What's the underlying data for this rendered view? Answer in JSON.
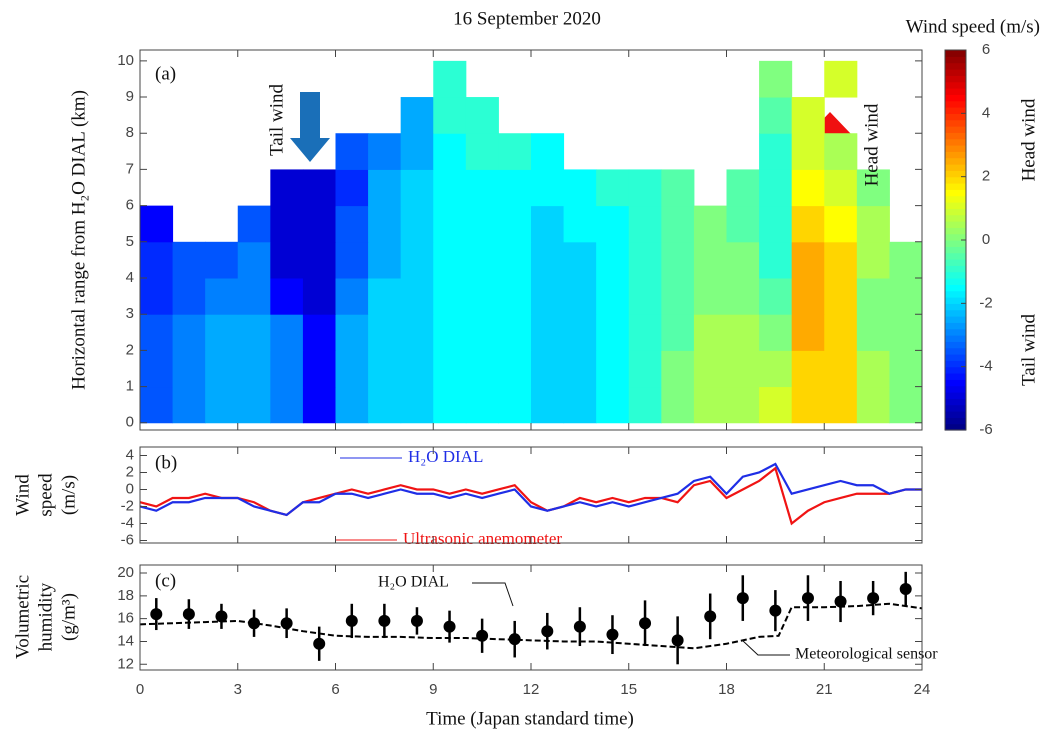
{
  "chart_data": [
    {
      "type": "heatmap",
      "title": "16 September 2020",
      "panel_label": "(a)",
      "ylabel": "Horizontal range from H₂O DIAL (km)",
      "xlim": [
        0,
        24
      ],
      "xticks": [
        0,
        3,
        6,
        9,
        12,
        15,
        18,
        21,
        24
      ],
      "ylim": [
        -0.2,
        10.3
      ],
      "yticks": [
        0,
        1,
        2,
        3,
        4,
        5,
        6,
        7,
        8,
        9,
        10
      ],
      "x_edges": [
        0,
        1,
        2,
        3,
        4,
        5,
        6,
        7,
        8,
        9,
        10,
        11,
        12,
        13,
        14,
        15,
        16,
        17,
        18,
        19,
        20,
        21,
        22,
        23,
        24
      ],
      "y_edges": [
        0,
        1,
        2,
        3,
        4,
        5,
        6,
        7,
        8,
        9,
        10
      ],
      "colormap": "jet",
      "z": [
        [
          -3.5,
          -3,
          -2.5,
          -2.5,
          -3,
          -4.5,
          -2.5,
          -2,
          -2,
          -1.5,
          -1.5,
          -1.5,
          -2,
          -2,
          -1.5,
          -1,
          0,
          0.5,
          0.5,
          1,
          2,
          2,
          0.5,
          0
        ],
        [
          -3.5,
          -3,
          -2.5,
          -2.5,
          -3,
          -4.5,
          -2.5,
          -2,
          -2,
          -1.5,
          -1.5,
          -1.5,
          -2,
          -2,
          -1.5,
          -1,
          0,
          0.5,
          0.5,
          0.5,
          2,
          2,
          0.5,
          0
        ],
        [
          -3.5,
          -3,
          -2.5,
          -2.5,
          -3,
          -4.5,
          -2.5,
          -2,
          -2,
          -1.5,
          -1.5,
          -1.5,
          -2,
          -2,
          -1.5,
          -1,
          -0.5,
          0.5,
          0.5,
          0,
          2.5,
          2,
          0,
          0
        ],
        [
          -4,
          -3.5,
          -3,
          -3,
          -4.5,
          -5,
          -3,
          -2,
          -2,
          -1.5,
          -1.5,
          -1.5,
          -2,
          -2,
          -1.5,
          -1,
          -0.5,
          0,
          0,
          -0.5,
          2.5,
          2,
          0,
          0
        ],
        [
          -4,
          -3.5,
          -3.5,
          -3,
          -5,
          -5,
          -3.5,
          -2.5,
          -2,
          -1.5,
          -1.5,
          -1.5,
          -2,
          -2,
          -1.5,
          -1,
          -0.5,
          0,
          0,
          -1,
          2.5,
          2,
          0.5,
          0
        ],
        [
          -4.5,
          null,
          null,
          -3.5,
          -5,
          -5,
          -3.5,
          -2.5,
          -2,
          -1.5,
          -1.5,
          -1.5,
          -2,
          -1.5,
          -1.5,
          -1,
          -0.5,
          0,
          -0.5,
          -1,
          2,
          1.5,
          0.5,
          null
        ],
        [
          null,
          null,
          null,
          null,
          -5,
          -5,
          -4,
          -2.5,
          -2,
          -1.5,
          -1.5,
          -1.5,
          -1.5,
          -1.5,
          -1,
          -1,
          -0.5,
          null,
          -0.5,
          -1,
          1.5,
          1,
          0,
          null
        ],
        [
          null,
          null,
          null,
          null,
          null,
          null,
          -3.5,
          -3,
          -2.5,
          -1.5,
          -1,
          -1,
          -1.5,
          null,
          null,
          null,
          null,
          null,
          null,
          -1,
          1,
          0.5,
          null,
          null
        ],
        [
          null,
          null,
          null,
          null,
          null,
          null,
          null,
          null,
          -2.5,
          -1,
          -1,
          null,
          null,
          null,
          null,
          null,
          null,
          null,
          null,
          -0.5,
          1,
          null,
          null,
          null
        ],
        [
          null,
          null,
          null,
          null,
          null,
          null,
          null,
          null,
          null,
          -1,
          null,
          null,
          null,
          null,
          null,
          null,
          null,
          null,
          null,
          0,
          null,
          1,
          null,
          null
        ]
      ],
      "colorbar": {
        "label": "Wind speed (m/s)",
        "lim": [
          -6,
          6
        ],
        "ticks": [
          -6,
          -4,
          -2,
          0,
          2,
          4,
          6
        ]
      },
      "annotations": [
        "Tail wind",
        "Head wind",
        "Head wind",
        "Tail wind"
      ]
    },
    {
      "type": "line",
      "panel_label": "(b)",
      "ylabel": [
        "Wind",
        "speed",
        "(m/s)"
      ],
      "xlim": [
        0,
        24
      ],
      "xticks": [
        0,
        3,
        6,
        9,
        12,
        15,
        18,
        21,
        24
      ],
      "ylim": [
        -6.3,
        5
      ],
      "yticks": [
        -6,
        -4,
        -2,
        0,
        2,
        4
      ],
      "x": [
        0,
        0.5,
        1,
        1.5,
        2,
        2.5,
        3,
        3.5,
        4,
        4.5,
        5,
        5.5,
        6,
        6.5,
        7,
        7.5,
        8,
        8.5,
        9,
        9.5,
        10,
        10.5,
        11,
        11.5,
        12,
        12.5,
        13,
        13.5,
        14,
        14.5,
        15,
        15.5,
        16,
        16.5,
        17,
        17.5,
        18,
        18.5,
        19,
        19.5,
        20,
        20.5,
        21,
        21.5,
        22,
        22.5,
        23,
        23.5,
        24
      ],
      "series": [
        {
          "name": "H₂O DIAL",
          "color": "#1f2ee6",
          "values": [
            -2,
            -2.5,
            -1.5,
            -1.5,
            -1,
            -1,
            -1,
            -2,
            -2.5,
            -3,
            -1.5,
            -1.5,
            -0.5,
            -0.5,
            -1,
            -0.5,
            0,
            -0.5,
            -0.5,
            -1,
            -0.5,
            -1,
            -0.5,
            0,
            -2,
            -2.5,
            -2,
            -1.5,
            -2,
            -1.5,
            -2,
            -1.5,
            -1,
            -0.5,
            1,
            1.5,
            -0.5,
            1.5,
            2,
            3,
            -0.5,
            0,
            0.5,
            1,
            0.5,
            0.5,
            -0.5,
            0,
            0
          ]
        },
        {
          "name": "Ultrasonic anemometer",
          "color": "#f01414",
          "values": [
            -1.5,
            -2,
            -1,
            -1,
            -0.5,
            -1,
            -1,
            -1.5,
            -2.5,
            -3,
            -1.5,
            -1,
            -0.5,
            0,
            -0.5,
            0,
            0.5,
            0,
            0,
            -0.5,
            0,
            -0.5,
            0,
            0.5,
            -1.5,
            -2.5,
            -2,
            -1,
            -1.5,
            -1,
            -1.5,
            -1,
            -1,
            -1.5,
            0.5,
            1,
            -1,
            0,
            1,
            2.5,
            -4,
            -2.5,
            -1.5,
            -1,
            -0.5,
            -0.5,
            -0.5,
            0,
            0
          ]
        }
      ]
    },
    {
      "type": "errorbar",
      "panel_label": "(c)",
      "ylabel": [
        "Volumetric",
        "humidity",
        "(g/m³)"
      ],
      "xlabel": "Time (Japan standard time)",
      "xlim": [
        0,
        24
      ],
      "xticks": [
        0,
        3,
        6,
        9,
        12,
        15,
        18,
        21,
        24
      ],
      "ylim": [
        11.5,
        20.7
      ],
      "yticks": [
        12,
        14,
        16,
        18,
        20
      ],
      "series": [
        {
          "name": "H₂O DIAL",
          "color": "#000000",
          "x": [
            0.5,
            1.5,
            2.5,
            3.5,
            4.5,
            5.5,
            6.5,
            7.5,
            8.5,
            9.5,
            10.5,
            11.5,
            12.5,
            13.5,
            14.5,
            15.5,
            16.5,
            17.5,
            18.5,
            19.5,
            20.5,
            21.5,
            22.5,
            23.5
          ],
          "values": [
            16.4,
            16.4,
            16.2,
            15.6,
            15.6,
            13.8,
            15.8,
            15.8,
            15.8,
            15.3,
            14.5,
            14.2,
            14.9,
            15.3,
            14.6,
            15.6,
            14.1,
            16.2,
            17.8,
            16.7,
            17.8,
            17.5,
            17.8,
            18.6
          ],
          "errors": [
            1.4,
            1.3,
            1.1,
            1.2,
            1.3,
            1.5,
            1.5,
            1.5,
            1.2,
            1.4,
            1.5,
            1.6,
            1.6,
            1.7,
            1.7,
            2.0,
            2.1,
            2.0,
            2.0,
            1.8,
            2.0,
            1.8,
            1.5,
            1.5
          ]
        },
        {
          "name": "Meteorological sensor",
          "color": "#000000",
          "x": [
            0,
            1,
            2,
            3,
            4,
            5,
            6,
            7,
            8,
            9,
            10,
            11,
            12,
            13,
            14,
            15,
            16,
            17,
            18,
            19,
            19.6,
            20,
            21,
            22,
            23,
            24
          ],
          "values": [
            15.5,
            15.6,
            15.7,
            15.8,
            15.4,
            14.9,
            14.5,
            14.4,
            14.4,
            14.3,
            14.3,
            14.2,
            14.1,
            14.0,
            14.0,
            13.8,
            13.6,
            13.4,
            13.8,
            14.4,
            14.5,
            17.0,
            17.0,
            17.1,
            17.3,
            16.9
          ]
        }
      ]
    }
  ]
}
